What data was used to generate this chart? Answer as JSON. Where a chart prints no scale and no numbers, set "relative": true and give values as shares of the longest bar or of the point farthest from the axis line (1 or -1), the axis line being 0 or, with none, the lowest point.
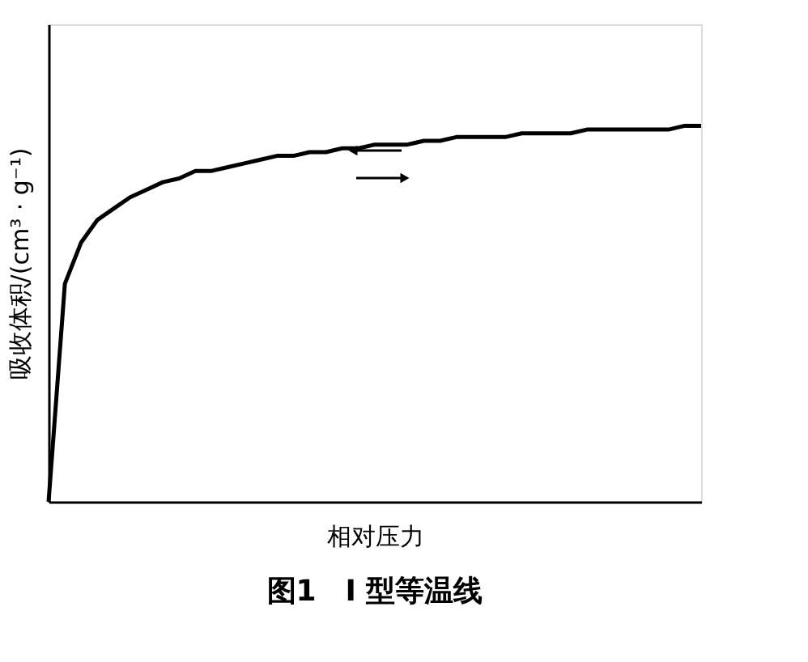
{
  "chart_data": {
    "type": "line",
    "title": "图1　I 型等温线",
    "xlabel": "相对压力",
    "ylabel": "吸收体积/(cm³ · g⁻¹)",
    "relative": true,
    "tick_labels": false,
    "grid": false,
    "legend": false,
    "marker": "none",
    "line_style": "solid",
    "categories": [
      null,
      null,
      null,
      null,
      null,
      null,
      null,
      null,
      null,
      null,
      null,
      null,
      null,
      null,
      null,
      null,
      null,
      null,
      null,
      null,
      null,
      null,
      null,
      null,
      null,
      null,
      null,
      null,
      null,
      null,
      null,
      null,
      null,
      null,
      null,
      null,
      null,
      null,
      null,
      null,
      null
    ],
    "series": [
      {
        "color": "#000000",
        "values": [
          0,
          0.58,
          0.69,
          0.75,
          0.78,
          0.81,
          0.83,
          0.85,
          0.86,
          0.88,
          0.88,
          0.89,
          0.9,
          0.91,
          0.92,
          0.92,
          0.93,
          0.93,
          0.94,
          0.94,
          0.95,
          0.95,
          0.95,
          0.96,
          0.96,
          0.97,
          0.97,
          0.97,
          0.97,
          0.98,
          0.98,
          0.98,
          0.98,
          0.99,
          0.99,
          0.99,
          0.99,
          0.99,
          0.99,
          1,
          1
        ]
      }
    ]
  }
}
